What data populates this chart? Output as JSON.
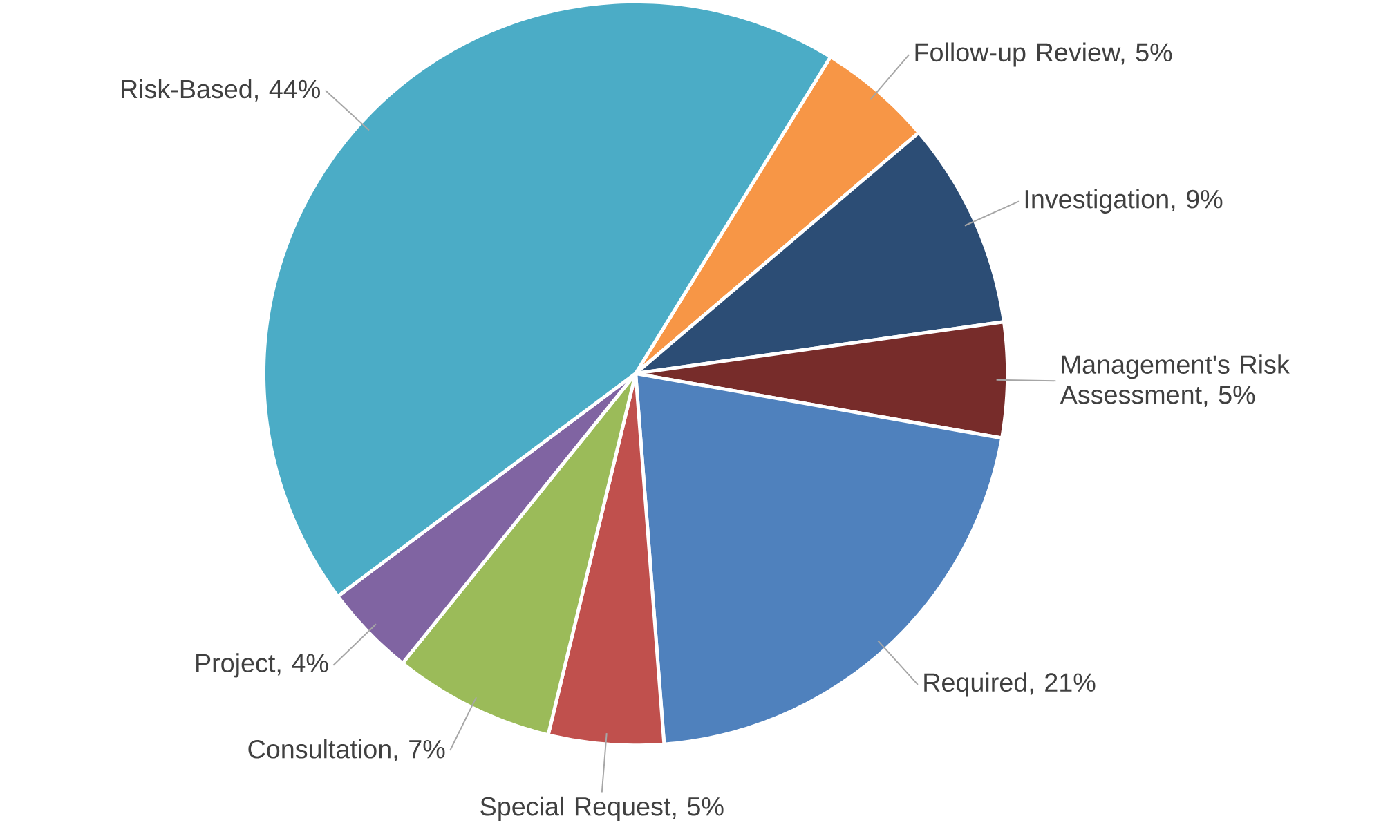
{
  "chart_data": {
    "type": "pie",
    "categories": [
      "Follow-up Review, 5%",
      "Investigation, 9%",
      "Management's Risk Assessment, 5%",
      "Required, 21%",
      "Special Request, 5%",
      "Consultation, 7%",
      "Project, 4%",
      "Risk-Based, 44%"
    ],
    "values": [
      5,
      9,
      5,
      21,
      5,
      7,
      4,
      44
    ],
    "colors": [
      "#f79646",
      "#2c4d75",
      "#772c2a",
      "#4f81bd",
      "#c0504d",
      "#9bbb59",
      "#8064a2",
      "#4bacc6"
    ]
  }
}
